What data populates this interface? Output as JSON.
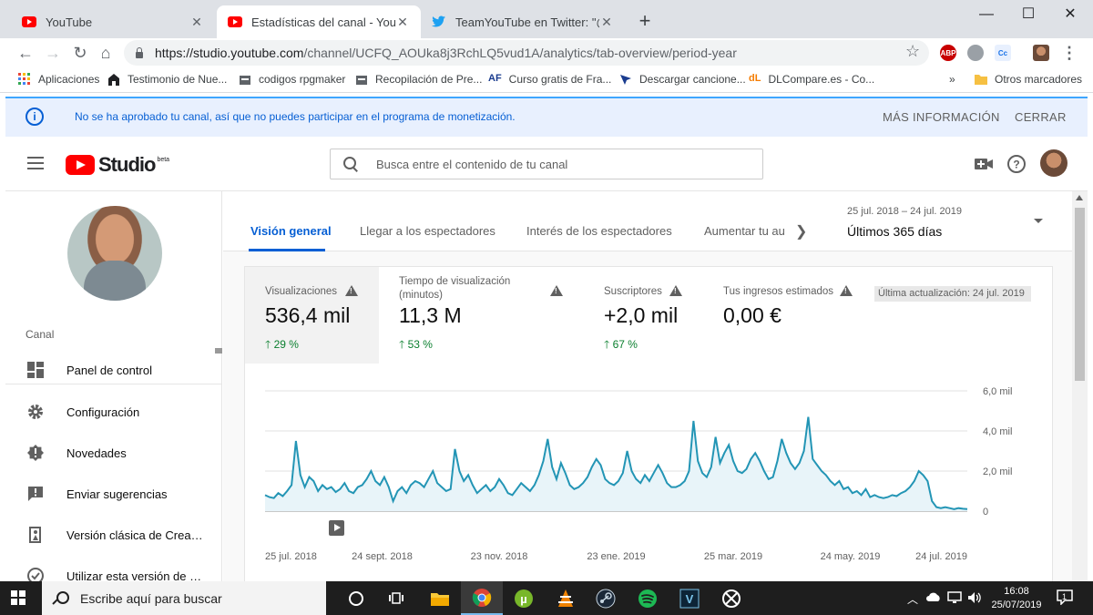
{
  "browser": {
    "tabs": [
      {
        "title": "YouTube",
        "active": false
      },
      {
        "title": "Estadísticas del canal - YouTube S",
        "active": true
      },
      {
        "title": "TeamYouTube en Twitter: \"@Yuni",
        "active": false
      }
    ],
    "url_host": "https://studio.youtube.com",
    "url_path": "/channel/UCFQ_AOUka8j3RchLQ5vud1A/analytics/tab-overview/period-year",
    "extensions": [
      "ABP",
      "Cc"
    ],
    "bookmarks": [
      "Aplicaciones",
      "Testimonio de Nue...",
      "codigos rpgmaker",
      "Recopilación de Pre...",
      "Curso gratis de Fra...",
      "Descargar cancione...",
      "DLCompare.es - Co..."
    ],
    "bookmarks_overflow": "»",
    "other_bookmarks": "Otros marcadores"
  },
  "banner": {
    "message": "No se ha aprobado tu canal, así que no puedes participar en el programa de monetización.",
    "more_info": "MÁS INFORMACIÓN",
    "close": "CERRAR"
  },
  "studio": {
    "logo_text": "Studio",
    "logo_badge": "beta",
    "search_placeholder": "Busca entre el contenido de tu canal"
  },
  "sidebar": {
    "section_label": "Canal",
    "items": [
      {
        "label": "Panel de control",
        "icon": "dashboard-icon"
      },
      {
        "label": "Configuración",
        "icon": "gear-icon"
      },
      {
        "label": "Novedades",
        "icon": "alert-icon"
      },
      {
        "label": "Enviar sugerencias",
        "icon": "feedback-icon"
      },
      {
        "label": "Versión clásica de Creator Studio",
        "icon": "classic-icon"
      },
      {
        "label": "Utilizar esta versión de forma predeterminada",
        "icon": "check-circle-icon"
      }
    ]
  },
  "analytics": {
    "tabs": [
      "Visión general",
      "Llegar a los espectadores",
      "Interés de los espectadores",
      "Aumentar tu au"
    ],
    "active_tab": "Visión general",
    "date_range": "25 jul. 2018 – 24 jul. 2019",
    "period": "Últimos 365 días",
    "metrics": [
      {
        "label": "Visualizaciones",
        "value": "536,4 mil",
        "delta": "29 %",
        "selected": true
      },
      {
        "label": "Tiempo de visualización (minutos)",
        "value": "11,3 M",
        "delta": "53 %",
        "selected": false
      },
      {
        "label": "Suscriptores",
        "value": "+2,0 mil",
        "delta": "67 %",
        "selected": false
      },
      {
        "label": "Tus ingresos estimados",
        "value": "0,00 €",
        "delta": "",
        "selected": false
      }
    ],
    "last_update": "Última actualización: 24 jul. 2019"
  },
  "chart_data": {
    "type": "area",
    "y_tick_labels": [
      "6,0 mil",
      "4,0 mil",
      "2,0 mil",
      "0"
    ],
    "ylim": [
      0,
      6000
    ],
    "x_tick_labels": [
      "25 jul. 2018",
      "24 sept. 2018",
      "23 nov. 2018",
      "23 ene. 2019",
      "25 mar. 2019",
      "24 may. 2019",
      "24 jul. 2019"
    ],
    "series": [
      {
        "name": "",
        "values": [
          800,
          700,
          650,
          900,
          750,
          1000,
          1300,
          3500,
          1800,
          1200,
          1700,
          1500,
          1000,
          1300,
          1100,
          1200,
          950,
          1100,
          1400,
          1000,
          900,
          1200,
          1300,
          1600,
          2000,
          1500,
          1300,
          1700,
          1200,
          500,
          1000,
          1200,
          900,
          1300,
          1500,
          1400,
          1200,
          1600,
          2000,
          1400,
          1200,
          1000,
          1100,
          3100,
          2000,
          1500,
          1800,
          1300,
          900,
          1100,
          1300,
          1000,
          1200,
          1600,
          1300,
          900,
          800,
          1100,
          1400,
          1200,
          1000,
          1300,
          1800,
          2500,
          3600,
          2200,
          1600,
          2400,
          1900,
          1300,
          1100,
          1200,
          1400,
          1700,
          2200,
          2600,
          2300,
          1600,
          1400,
          1300,
          1500,
          1900,
          3000,
          2000,
          1600,
          1400,
          1800,
          1500,
          1900,
          2300,
          1900,
          1400,
          1200,
          1200,
          1300,
          1500,
          2000,
          4500,
          2500,
          1900,
          1700,
          2200,
          3700,
          2400,
          2900,
          3300,
          2500,
          2000,
          1900,
          2100,
          2600,
          2900,
          2500,
          2000,
          1600,
          1700,
          2500,
          3600,
          2900,
          2400,
          2100,
          2400,
          3000,
          4700,
          2600,
          2300,
          2000,
          1800,
          1500,
          1300,
          1500,
          1100,
          1200,
          900,
          1000,
          800,
          1100,
          700,
          800,
          700,
          650,
          700,
          800,
          750,
          900,
          1000,
          1200,
          1500,
          2000,
          1800,
          1500,
          500,
          200,
          150,
          200,
          150,
          100,
          150,
          120,
          100
        ]
      }
    ]
  },
  "taskbar": {
    "search_placeholder": "Escribe aquí para buscar",
    "time": "16:08",
    "date": "25/07/2019",
    "notification_count": "1"
  }
}
